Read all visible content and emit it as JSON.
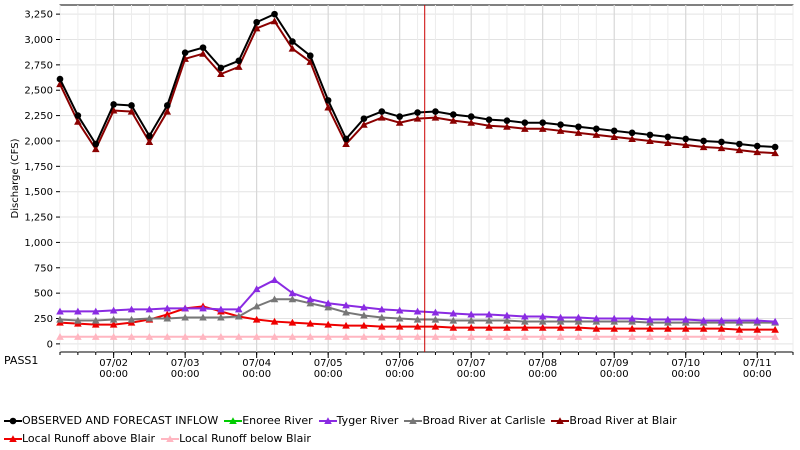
{
  "page": {
    "bottom_label": "PASS1"
  },
  "chart_data": {
    "type": "line",
    "ylabel": "Discharge (CFS)",
    "xlabel": "",
    "ylim": [
      -80,
      3340
    ],
    "yticks": [
      0,
      250,
      500,
      750,
      1000,
      1250,
      1500,
      1750,
      2000,
      2250,
      2500,
      2750,
      3000,
      3250
    ],
    "ytick_labels": [
      "0",
      "250",
      "500",
      "750",
      "1,000",
      "1,250",
      "1,500",
      "1,750",
      "2,000",
      "2,250",
      "2,500",
      "2,750",
      "3,000",
      "3,250"
    ],
    "xlim": [
      0,
      41
    ],
    "xticks": [
      {
        "x": 3,
        "date": "07/02",
        "time": "00:00"
      },
      {
        "x": 7,
        "date": "07/03",
        "time": "00:00"
      },
      {
        "x": 11,
        "date": "07/04",
        "time": "00:00"
      },
      {
        "x": 15,
        "date": "07/05",
        "time": "00:00"
      },
      {
        "x": 19,
        "date": "07/06",
        "time": "00:00"
      },
      {
        "x": 23,
        "date": "07/07",
        "time": "00:00"
      },
      {
        "x": 27,
        "date": "07/08",
        "time": "00:00"
      },
      {
        "x": 31,
        "date": "07/09",
        "time": "00:00"
      },
      {
        "x": 35,
        "date": "07/10",
        "time": "00:00"
      },
      {
        "x": 39,
        "date": "07/11",
        "time": "00:00"
      }
    ],
    "current_time_x": 20.4,
    "grid": true,
    "legend_position": "bottom",
    "series": [
      {
        "name": "OBSERVED AND FORECAST INFLOW",
        "color": "#000000",
        "marker": "circle",
        "values": [
          2610,
          2250,
          1970,
          2360,
          2350,
          2050,
          2350,
          2870,
          2920,
          2720,
          2790,
          3170,
          3250,
          2980,
          2840,
          2400,
          2020,
          2220,
          2290,
          2240,
          2280,
          2290,
          2260,
          2240,
          2210,
          2200,
          2180,
          2180,
          2160,
          2140,
          2120,
          2100,
          2080,
          2060,
          2040,
          2020,
          2000,
          1990,
          1970,
          1950,
          1940
        ]
      },
      {
        "name": "Enoree River",
        "color": "#00cc00",
        "marker": "triangle",
        "values": []
      },
      {
        "name": "Tyger River",
        "color": "#8a2be2",
        "marker": "triangle",
        "values": [
          320,
          320,
          320,
          330,
          340,
          340,
          350,
          350,
          350,
          340,
          340,
          540,
          630,
          500,
          440,
          400,
          380,
          360,
          340,
          330,
          320,
          310,
          300,
          290,
          290,
          280,
          270,
          270,
          260,
          260,
          250,
          250,
          250,
          240,
          240,
          240,
          230,
          230,
          230,
          230,
          220
        ]
      },
      {
        "name": "Broad River at Carlisle",
        "color": "#777777",
        "marker": "triangle",
        "values": [
          240,
          230,
          230,
          240,
          240,
          250,
          250,
          260,
          260,
          260,
          270,
          370,
          440,
          440,
          400,
          360,
          310,
          280,
          260,
          250,
          240,
          240,
          230,
          230,
          230,
          230,
          220,
          220,
          220,
          220,
          220,
          220,
          220,
          210,
          210,
          210,
          210,
          210,
          210,
          210,
          210
        ]
      },
      {
        "name": "Broad River at Blair",
        "color": "#8b0000",
        "marker": "triangle",
        "values": [
          2560,
          2190,
          1920,
          2300,
          2290,
          1990,
          2290,
          2810,
          2860,
          2660,
          2730,
          3110,
          3180,
          2910,
          2780,
          2330,
          1970,
          2160,
          2230,
          2180,
          2220,
          2230,
          2200,
          2180,
          2150,
          2140,
          2120,
          2120,
          2100,
          2080,
          2060,
          2040,
          2020,
          2000,
          1980,
          1960,
          1940,
          1930,
          1910,
          1890,
          1880
        ]
      },
      {
        "name": "Local Runoff above Blair",
        "color": "#ee0000",
        "marker": "triangle",
        "values": [
          210,
          200,
          190,
          190,
          210,
          240,
          290,
          350,
          370,
          320,
          270,
          240,
          220,
          210,
          200,
          190,
          180,
          180,
          170,
          170,
          170,
          170,
          160,
          160,
          160,
          160,
          160,
          160,
          160,
          160,
          150,
          150,
          150,
          150,
          150,
          150,
          150,
          150,
          140,
          140,
          140
        ]
      },
      {
        "name": "Local Runoff below Blair",
        "color": "#ffb6c1",
        "marker": "triangle",
        "values": [
          70,
          70,
          70,
          70,
          70,
          70,
          70,
          70,
          70,
          70,
          70,
          70,
          70,
          70,
          70,
          70,
          70,
          70,
          70,
          70,
          70,
          70,
          70,
          70,
          70,
          70,
          70,
          70,
          70,
          70,
          70,
          70,
          70,
          70,
          70,
          70,
          70,
          70,
          70,
          70,
          70
        ]
      }
    ]
  }
}
